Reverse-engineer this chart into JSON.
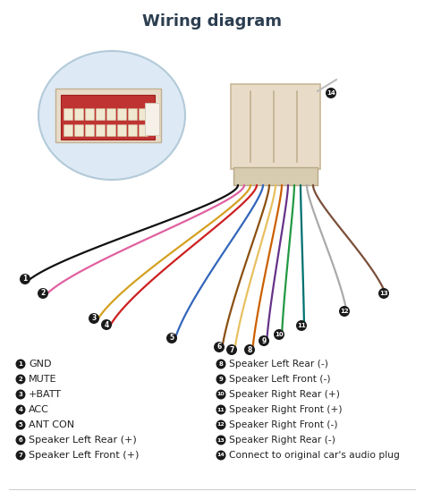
{
  "title": "Wiring diagram",
  "title_fontsize": 13,
  "title_color": "#2c3e50",
  "title_fontweight": "bold",
  "background_color": "#ffffff",
  "left_labels": [
    {
      "num": "1",
      "text": "GND"
    },
    {
      "num": "2",
      "text": "MUTE"
    },
    {
      "num": "3",
      "text": "+BATT"
    },
    {
      "num": "4",
      "text": "ACC"
    },
    {
      "num": "5",
      "text": "ANT CON"
    },
    {
      "num": "6",
      "text": "Speaker Left Rear (+)"
    },
    {
      "num": "7",
      "text": "Speaker Left Front (+)"
    }
  ],
  "right_labels": [
    {
      "num": "8",
      "text": "Speaker Left Rear (-)"
    },
    {
      "num": "9",
      "text": "Speaker Left Front (-)"
    },
    {
      "num": "10",
      "text": "Speaker Right Rear (+)"
    },
    {
      "num": "11",
      "text": "Speaker Right Front (+)"
    },
    {
      "num": "12",
      "text": "Speaker Right Front (-)"
    },
    {
      "num": "13",
      "text": "Speaker Right Rear (-)"
    },
    {
      "num": "14",
      "text": "Connect to original car's audio plug"
    }
  ],
  "wire_colors": [
    "#111111",
    "#e060a0",
    "#d4a020",
    "#cc2020",
    "#3366bb",
    "#8B5010",
    "#e8c060",
    "#cc6000",
    "#663388",
    "#229944",
    "#007070",
    "#aaaaaa",
    "#7b4f3a",
    "#bbbbbb"
  ],
  "connector_color": "#e8dcc8",
  "connector_edge": "#c8b898",
  "dot_color": "#222222",
  "label_fontsize": 8,
  "num_fontsize": 6,
  "zoom_circle_color": "#dce8f4",
  "zoom_circle_edge": "#b0c8d8"
}
